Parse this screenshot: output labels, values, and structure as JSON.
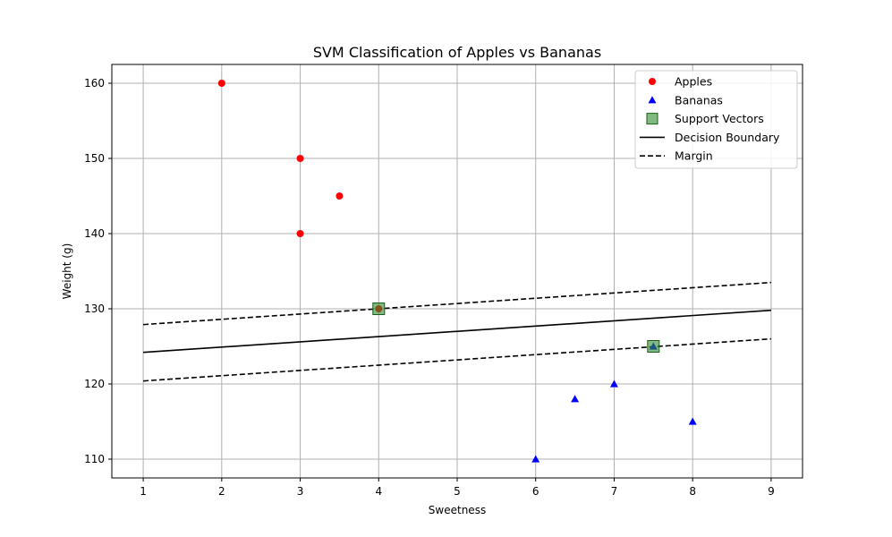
{
  "chart_data": {
    "type": "scatter",
    "title": "SVM Classification of Apples vs Bananas",
    "xlabel": "Sweetness",
    "ylabel": "Weight (g)",
    "xlim": [
      0.6,
      9.4
    ],
    "ylim": [
      107.5,
      162.5
    ],
    "xticks": [
      1,
      2,
      3,
      4,
      5,
      6,
      7,
      8,
      9
    ],
    "yticks": [
      110,
      120,
      130,
      140,
      150,
      160
    ],
    "grid": true,
    "legend_position": "top-right",
    "series": [
      {
        "name": "Apples",
        "marker": "circle",
        "color": "#ff0000",
        "points": [
          [
            2,
            160
          ],
          [
            3,
            150
          ],
          [
            3.5,
            145
          ],
          [
            3,
            140
          ],
          [
            4,
            130
          ]
        ]
      },
      {
        "name": "Bananas",
        "marker": "triangle",
        "color": "#0000ff",
        "points": [
          [
            7.5,
            125
          ],
          [
            7,
            120
          ],
          [
            6.5,
            118
          ],
          [
            8,
            115
          ],
          [
            6,
            110
          ]
        ]
      },
      {
        "name": "Support Vectors",
        "marker": "square",
        "color": "#2e8b2e",
        "points": [
          [
            4,
            130
          ],
          [
            7.5,
            125
          ]
        ]
      }
    ],
    "lines": [
      {
        "name": "Decision Boundary",
        "style": "solid",
        "color": "#000000",
        "points": [
          [
            1,
            124.2
          ],
          [
            9,
            129.8
          ]
        ]
      },
      {
        "name": "Margin",
        "style": "dashed",
        "color": "#000000",
        "points": [
          [
            1,
            127.9
          ],
          [
            9,
            133.5
          ]
        ]
      },
      {
        "name": "Margin",
        "style": "dashed",
        "color": "#000000",
        "points": [
          [
            1,
            120.4
          ],
          [
            9,
            126.0
          ]
        ]
      }
    ],
    "legend": [
      "Apples",
      "Bananas",
      "Support Vectors",
      "Decision Boundary",
      "Margin"
    ]
  }
}
